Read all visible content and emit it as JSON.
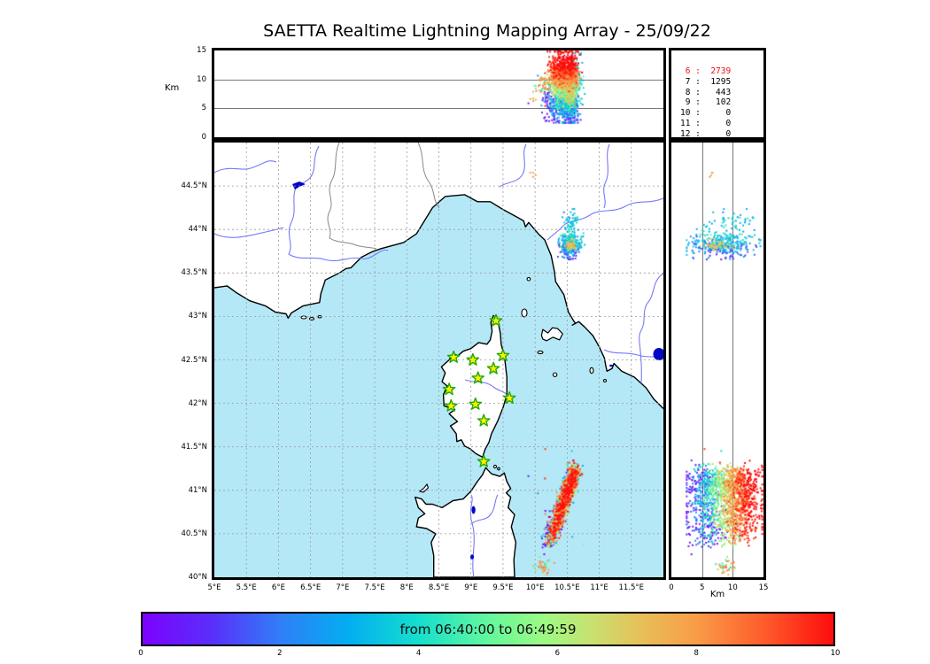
{
  "title": "SAETTA Realtime Lightning Mapping Array - 25/09/22",
  "top_panel": {
    "ylabel_unit": "Km",
    "yticks": [
      {
        "label": "15",
        "value": 15
      },
      {
        "label": "10",
        "value": 10
      },
      {
        "label": "5",
        "value": 5
      },
      {
        "label": "0",
        "value": 0
      }
    ],
    "alt_range_km": [
      0,
      15
    ]
  },
  "map_panel": {
    "lat_ticks": [
      {
        "label": "44.5°N",
        "value": 44.5
      },
      {
        "label": "44°N",
        "value": 44
      },
      {
        "label": "43.5°N",
        "value": 43.5
      },
      {
        "label": "43°N",
        "value": 43
      },
      {
        "label": "42.5°N",
        "value": 42.5
      },
      {
        "label": "42°N",
        "value": 42
      },
      {
        "label": "41.5°N",
        "value": 41.5
      },
      {
        "label": "41°N",
        "value": 41
      },
      {
        "label": "40.5°N",
        "value": 40.5
      },
      {
        "label": "40°N",
        "value": 40
      }
    ],
    "lon_ticks": [
      {
        "label": "5°E",
        "value": 5
      },
      {
        "label": "5.5°E",
        "value": 5.5
      },
      {
        "label": "6°E",
        "value": 6
      },
      {
        "label": "6.5°E",
        "value": 6.5
      },
      {
        "label": "7°E",
        "value": 7
      },
      {
        "label": "7.5°E",
        "value": 7.5
      },
      {
        "label": "8°E",
        "value": 8
      },
      {
        "label": "8.5°E",
        "value": 8.5
      },
      {
        "label": "9°E",
        "value": 9
      },
      {
        "label": "9.5°E",
        "value": 9.5
      },
      {
        "label": "10°E",
        "value": 10
      },
      {
        "label": "10.5°E",
        "value": 10.5
      },
      {
        "label": "11°E",
        "value": 11
      },
      {
        "label": "11.5°E",
        "value": 11.5
      }
    ],
    "lon_range": [
      5,
      12
    ],
    "lat_range": [
      40,
      45
    ],
    "sea_color": "#b5e8f7",
    "land_color": "#ffffff",
    "lake_color": "#0008c8"
  },
  "right_panel": {
    "xlabel_unit": "Km",
    "xticks": [
      {
        "label": "0",
        "value": 0
      },
      {
        "label": "5",
        "value": 5
      },
      {
        "label": "10",
        "value": 10
      },
      {
        "label": "15",
        "value": 15
      }
    ],
    "alt_range_km": [
      0,
      15
    ]
  },
  "stats_panel": {
    "rows": [
      {
        "level": "6",
        "count": "2739",
        "highlight": true
      },
      {
        "level": "7",
        "count": "1295",
        "highlight": false
      },
      {
        "level": "8",
        "count": "443",
        "highlight": false
      },
      {
        "level": "9",
        "count": "102",
        "highlight": false
      },
      {
        "level": "10",
        "count": "0",
        "highlight": false
      },
      {
        "level": "11",
        "count": "0",
        "highlight": false
      },
      {
        "level": "12",
        "count": "0",
        "highlight": false
      }
    ],
    "highlight_color": "#ee1111"
  },
  "colorbar": {
    "label": "from 06:40:00 to 06:49:59",
    "ticks": [
      {
        "label": "0",
        "value": 0
      },
      {
        "label": "2",
        "value": 2
      },
      {
        "label": "4",
        "value": 4
      },
      {
        "label": "6",
        "value": 6
      },
      {
        "label": "8",
        "value": 8
      },
      {
        "label": "10",
        "value": 10
      }
    ],
    "range": [
      0,
      10
    ],
    "gradient_stops": [
      [
        0,
        "#7c02fe"
      ],
      [
        0.1,
        "#5a2efb"
      ],
      [
        0.2,
        "#2f7ff7"
      ],
      [
        0.3,
        "#02aff1"
      ],
      [
        0.4,
        "#16dfcd"
      ],
      [
        0.5,
        "#63f79d"
      ],
      [
        0.58,
        "#9cfa83"
      ],
      [
        0.65,
        "#c8e170"
      ],
      [
        0.72,
        "#e7c058"
      ],
      [
        0.8,
        "#f99d47"
      ],
      [
        0.9,
        "#fe5b2b"
      ],
      [
        1.0,
        "#fd0d0d"
      ]
    ]
  },
  "stations_lonlat": [
    [
      9.39,
      42.95
    ],
    [
      8.73,
      42.53
    ],
    [
      9.03,
      42.5
    ],
    [
      9.5,
      42.55
    ],
    [
      9.35,
      42.4
    ],
    [
      9.11,
      42.29
    ],
    [
      8.66,
      42.16
    ],
    [
      9.6,
      42.06
    ],
    [
      8.69,
      41.97
    ],
    [
      9.07,
      41.99
    ],
    [
      9.2,
      41.8
    ],
    [
      9.2,
      41.33
    ]
  ],
  "chart_data": {
    "type": "scatter",
    "title": "SAETTA Realtime Lightning Mapping Array - 25/09/22",
    "color_encodes": "time within window 06:40:00 to 06:49:59 (colorbar scale 0-10 minutes)",
    "panels": {
      "top": {
        "x": "longitude_deg_E",
        "x_range": [
          5,
          12
        ],
        "y": "altitude_km",
        "y_range": [
          0,
          15
        ],
        "gridlines_y": [
          5,
          10
        ]
      },
      "main": {
        "x": "longitude_deg_E",
        "x_range": [
          5,
          12
        ],
        "y": "latitude_deg_N",
        "y_range": [
          40,
          45
        ],
        "grid_step_deg": 0.5
      },
      "right": {
        "x": "altitude_km",
        "x_range": [
          0,
          15
        ],
        "y": "latitude_deg_N",
        "y_range": [
          40,
          45
        ],
        "gridlines_x": [
          5,
          10
        ]
      }
    },
    "source_counts_by_min_stations": {
      "6": 2739,
      "7": 1295,
      "8": 443,
      "9": 102,
      "10": 0,
      "11": 0,
      "12": 0
    },
    "clusters": [
      {
        "id": "tuscany-main",
        "kind": "gauss",
        "n": 300,
        "lon": [
          10.55,
          0.085
        ],
        "lat": [
          43.82,
          0.075
        ],
        "alt": [
          8,
          2.6,
          2.5,
          14.5
        ],
        "time": {
          "mode": "latgrad",
          "base": 2.8,
          "k": 7,
          "sd": 0.8,
          "clip": [
            0.3,
            5.2
          ],
          "purple_frac": 0.14
        }
      },
      {
        "id": "tuscany-north-tail",
        "kind": "gauss",
        "n": 60,
        "lon": [
          10.56,
          0.05
        ],
        "lat": [
          44.06,
          0.08
        ],
        "alt": [
          10,
          2,
          3,
          14.5
        ],
        "time": {
          "mode": "gauss",
          "mu": 3.4,
          "sd": 0.6,
          "clip": [
            2,
            4.6
          ]
        }
      },
      {
        "id": "tuscany-core-blob",
        "kind": "gauss",
        "n": 50,
        "lon": [
          10.55,
          0.035
        ],
        "lat": [
          43.81,
          0.028
        ],
        "alt": [
          7.5,
          1.0,
          5,
          10
        ],
        "time": {
          "mode": "gauss",
          "mu": 6.9,
          "sd": 0.5,
          "clip": [
            5.8,
            8
          ]
        }
      },
      {
        "id": "tyrrhenian-arc",
        "kind": "arc",
        "n": 1650,
        "lon0": 10.62,
        "lon1": 10.24,
        "lat0": 41.22,
        "lat1": 40.42,
        "u_bimodal": [
          0.45,
          0.17,
          0.13,
          0.6,
          0.22
        ],
        "lon_jit": 0.045,
        "lat_jit": 0.055,
        "alt_hi": [
          0.72,
          10.6,
          1.9,
          3,
          14.8
        ],
        "alt_lo": [
          6.2,
          1.9,
          2.5,
          12
        ],
        "time": {
          "mode": "altmap",
          "k": 0.93,
          "off": -2,
          "sd": 1.0,
          "clip": [
            0.2,
            10
          ],
          "purple_frac": 0.06
        }
      },
      {
        "id": "arc-sw-fringe",
        "kind": "gauss",
        "n": 55,
        "lon": [
          10.21,
          0.06
        ],
        "lat": [
          40.5,
          0.1
        ],
        "alt": [
          6,
          1.6,
          2,
          10
        ],
        "time": {
          "mode": "uniform",
          "range": [
            0,
            1.2
          ]
        }
      },
      {
        "id": "south-small",
        "kind": "gauss",
        "n": 40,
        "lon": [
          10.12,
          0.055
        ],
        "lat": [
          40.12,
          0.04
        ],
        "alt": [
          9,
          0.8,
          7,
          11
        ],
        "time": {
          "mode": "mix",
          "main": [
            0.7,
            7.8,
            0.5
          ],
          "alt2": [
            3.5,
            5.5
          ]
        }
      },
      {
        "id": "stray-nw",
        "kind": "gauss",
        "n": 4,
        "lon": [
          9.97,
          0.025
        ],
        "lat": [
          44.62,
          0.02
        ],
        "alt": [
          6.5,
          0.5,
          5.5,
          7.5
        ],
        "time": {
          "mode": "gauss",
          "mu": 7.8,
          "sd": 0.3,
          "clip": [
            7,
            8.5
          ]
        }
      },
      {
        "id": "sparse-outliers",
        "kind": "uniform",
        "n": 14,
        "lon_range": [
          9.85,
          10.8
        ],
        "lat_range": [
          40.3,
          41.6
        ],
        "alt_range": [
          3,
          12
        ],
        "time": {
          "mode": "uniform",
          "range": [
            0,
            10
          ]
        }
      }
    ]
  }
}
